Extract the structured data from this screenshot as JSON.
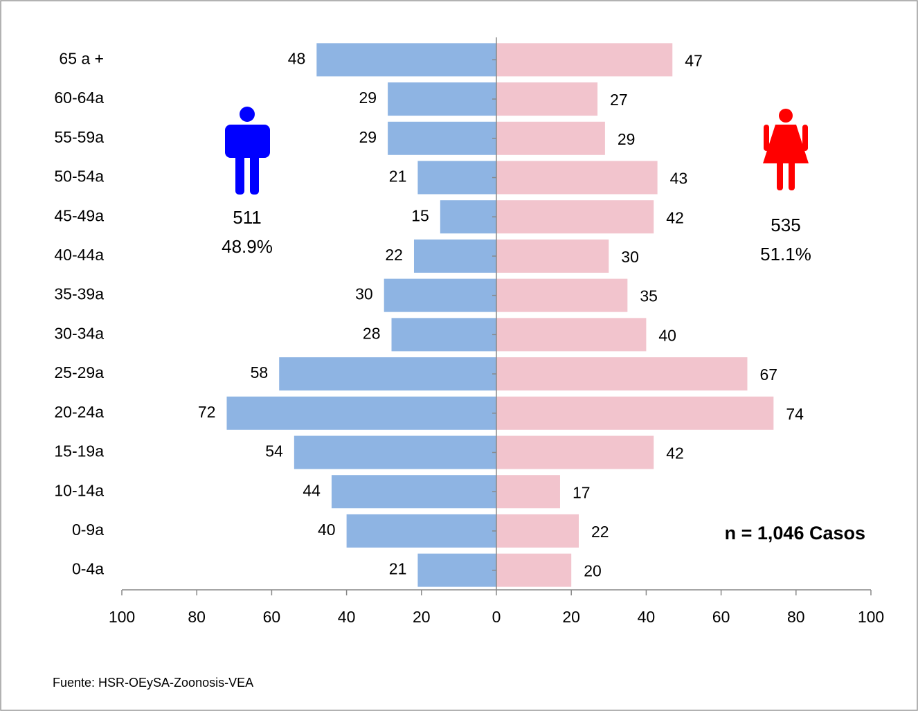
{
  "chart_data": {
    "type": "pyramid",
    "categories": [
      "65 a +",
      "60-64a",
      "55-59a",
      "50-54a",
      "45-49a",
      "40-44a",
      "35-39a",
      "30-34a",
      "25-29a",
      "20-24a",
      "15-19a",
      "10-14a",
      "0-9a",
      "0-4a"
    ],
    "series": [
      {
        "side": "left",
        "color": "#8eb4e3",
        "values": [
          48,
          29,
          29,
          21,
          15,
          22,
          30,
          28,
          58,
          72,
          54,
          44,
          40,
          21
        ]
      },
      {
        "side": "right",
        "color": "#f2c4cd",
        "values": [
          47,
          27,
          29,
          43,
          42,
          30,
          35,
          40,
          67,
          74,
          42,
          17,
          22,
          20
        ]
      }
    ],
    "xlim": [
      -100,
      100
    ],
    "xticks": [
      {
        "value": -100,
        "label": "100"
      },
      {
        "value": -80,
        "label": "80"
      },
      {
        "value": -60,
        "label": "60"
      },
      {
        "value": -40,
        "label": "40"
      },
      {
        "value": -20,
        "label": "20"
      },
      0,
      20,
      40,
      60,
      80,
      100
    ],
    "annotations": {
      "male_count": "511",
      "male_pct": "48.9%",
      "female_count": "535",
      "female_pct": "51.1%",
      "total": "n = 1,046 Casos"
    },
    "source": "Fuente: HSR-OEySA-Zoonosis-VEA"
  }
}
